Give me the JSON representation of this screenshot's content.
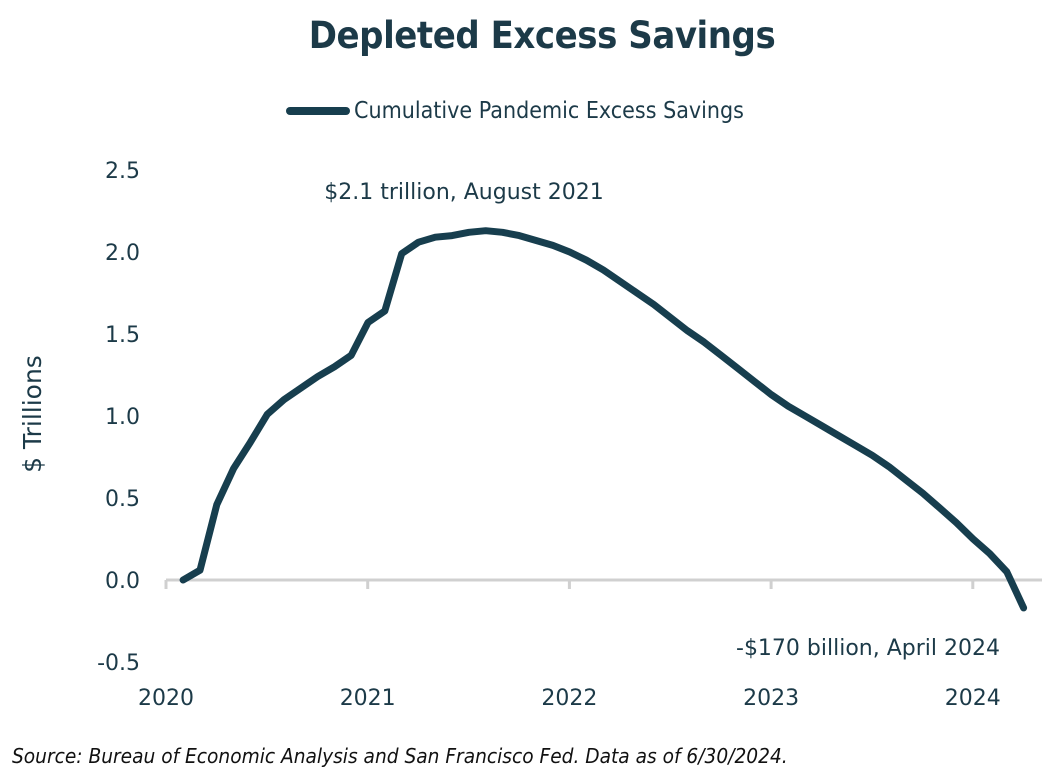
{
  "chart_data": {
    "type": "line",
    "title": "Depleted Excess Savings",
    "xlabel": "",
    "ylabel": "$ Trillions",
    "ylim": [
      -0.5,
      2.5
    ],
    "yticks": [
      "2.5",
      "2.0",
      "1.5",
      "1.0",
      "0.5",
      "0.0",
      "-0.5"
    ],
    "ytick_values": [
      2.5,
      2.0,
      1.5,
      1.0,
      0.5,
      0.0,
      -0.5
    ],
    "xlim": [
      2020.0,
      2024.35
    ],
    "xticks": [
      "2020",
      "2021",
      "2022",
      "2023",
      "2024"
    ],
    "xtick_values": [
      2020,
      2021,
      2022,
      2023,
      2024
    ],
    "grid": false,
    "legend_position": "top-center",
    "series": [
      {
        "name": "Cumulative Pandemic Excess Savings",
        "color": "#173e4e",
        "x": [
          "2020-02",
          "2020-03",
          "2020-04",
          "2020-05",
          "2020-06",
          "2020-07",
          "2020-08",
          "2020-09",
          "2020-10",
          "2020-11",
          "2020-12",
          "2021-01",
          "2021-02",
          "2021-03",
          "2021-04",
          "2021-05",
          "2021-06",
          "2021-07",
          "2021-08",
          "2021-09",
          "2021-10",
          "2021-11",
          "2021-12",
          "2022-01",
          "2022-02",
          "2022-03",
          "2022-04",
          "2022-05",
          "2022-06",
          "2022-07",
          "2022-08",
          "2022-09",
          "2022-10",
          "2022-11",
          "2022-12",
          "2023-01",
          "2023-02",
          "2023-03",
          "2023-04",
          "2023-05",
          "2023-06",
          "2023-07",
          "2023-08",
          "2023-09",
          "2023-10",
          "2023-11",
          "2023-12",
          "2024-01",
          "2024-02",
          "2024-03",
          "2024-04"
        ],
        "values": [
          0.0,
          0.06,
          0.46,
          0.68,
          0.84,
          1.01,
          1.1,
          1.17,
          1.24,
          1.3,
          1.37,
          1.57,
          1.64,
          1.99,
          2.06,
          2.09,
          2.1,
          2.12,
          2.13,
          2.12,
          2.1,
          2.07,
          2.04,
          2.0,
          1.95,
          1.89,
          1.82,
          1.75,
          1.68,
          1.6,
          1.52,
          1.45,
          1.37,
          1.29,
          1.21,
          1.13,
          1.06,
          1.0,
          0.94,
          0.88,
          0.82,
          0.76,
          0.69,
          0.61,
          0.53,
          0.44,
          0.35,
          0.25,
          0.16,
          0.05,
          -0.17
        ]
      }
    ],
    "annotations": [
      {
        "text": "$2.1 trillion, August 2021",
        "x": "2021-08",
        "y": 2.13,
        "placement": "above-left"
      },
      {
        "text": "-$170 billion, April 2024",
        "x": "2024-04",
        "y": -0.17,
        "placement": "below-left"
      }
    ]
  },
  "legend": {
    "label": "Cumulative Pandemic Excess Savings"
  },
  "source": "Source: Bureau of Economic Analysis and San Francisco Fed. Data as of 6/30/2024.",
  "colors": {
    "line": "#173e4e",
    "text": "#1c3a48",
    "axis": "#d0d0d0"
  }
}
